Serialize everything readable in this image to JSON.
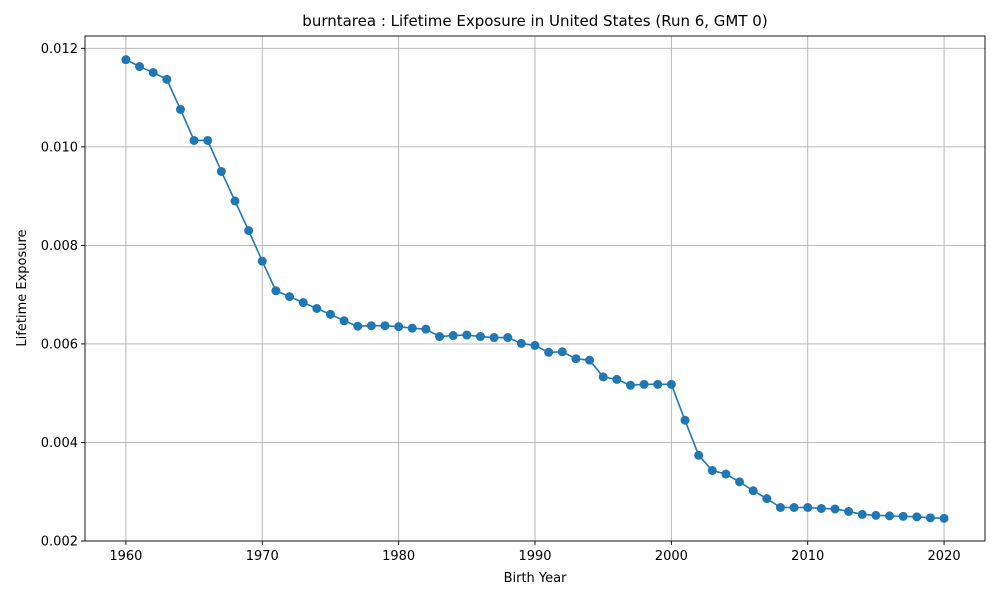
{
  "chart_data": {
    "type": "line",
    "title": "burntarea : Lifetime Exposure in United States (Run 6, GMT 0)",
    "xlabel": "Birth Year",
    "ylabel": "Lifetime Exposure",
    "xlim": [
      1957,
      2023
    ],
    "ylim": [
      0.002,
      0.01225
    ],
    "xticks": [
      1960,
      1970,
      1980,
      1990,
      2000,
      2010,
      2020
    ],
    "xtick_labels": [
      "1960",
      "1970",
      "1980",
      "1990",
      "2000",
      "2010",
      "2020"
    ],
    "yticks": [
      0.002,
      0.004,
      0.006,
      0.008,
      0.01,
      0.012
    ],
    "ytick_labels": [
      "0.002",
      "0.004",
      "0.006",
      "0.008",
      "0.010",
      "0.012"
    ],
    "grid": true,
    "color": "#1f77b4",
    "marker": "circle",
    "x": [
      1960,
      1961,
      1962,
      1963,
      1964,
      1965,
      1966,
      1967,
      1968,
      1969,
      1970,
      1971,
      1972,
      1973,
      1974,
      1975,
      1976,
      1977,
      1978,
      1979,
      1980,
      1981,
      1982,
      1983,
      1984,
      1985,
      1986,
      1987,
      1988,
      1989,
      1990,
      1991,
      1992,
      1993,
      1994,
      1995,
      1996,
      1997,
      1998,
      1999,
      2000,
      2001,
      2002,
      2003,
      2004,
      2005,
      2006,
      2007,
      2008,
      2009,
      2010,
      2011,
      2012,
      2013,
      2014,
      2015,
      2016,
      2017,
      2018,
      2019,
      2020
    ],
    "y": [
      0.01177,
      0.01163,
      0.01151,
      0.01137,
      0.01076,
      0.01013,
      0.01013,
      0.0095,
      0.0089,
      0.0083,
      0.00768,
      0.00708,
      0.00696,
      0.00684,
      0.00672,
      0.0066,
      0.00647,
      0.00636,
      0.00637,
      0.00637,
      0.00635,
      0.00632,
      0.0063,
      0.00615,
      0.00617,
      0.00618,
      0.00615,
      0.00613,
      0.00613,
      0.00601,
      0.00597,
      0.00583,
      0.00584,
      0.0057,
      0.00567,
      0.00533,
      0.00528,
      0.00516,
      0.00518,
      0.00518,
      0.00518,
      0.00445,
      0.00374,
      0.00343,
      0.00336,
      0.0032,
      0.00302,
      0.00286,
      0.00268,
      0.00268,
      0.00268,
      0.00266,
      0.00265,
      0.0026,
      0.00254,
      0.00252,
      0.00251,
      0.0025,
      0.00249,
      0.00247,
      0.00246
    ]
  }
}
